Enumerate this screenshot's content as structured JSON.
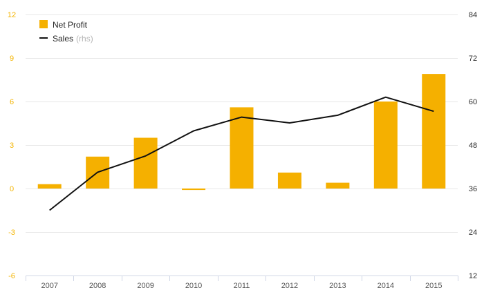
{
  "chart_data": {
    "type": "bar",
    "title": "",
    "xlabel": "",
    "ylabel": "",
    "categories": [
      "2007",
      "2008",
      "2009",
      "2010",
      "2011",
      "2012",
      "2013",
      "2014",
      "2015"
    ],
    "series": [
      {
        "name": "Net Profit",
        "type": "bar",
        "axis": "left",
        "color": "#f5b000",
        "values": [
          0.3,
          2.2,
          3.5,
          -0.1,
          5.6,
          1.1,
          0.4,
          6.0,
          7.9
        ]
      },
      {
        "name": "Sales",
        "type": "line",
        "axis": "right",
        "color": "#111111",
        "values": [
          30.0,
          40.5,
          45.0,
          51.9,
          55.7,
          54.1,
          56.2,
          61.2,
          57.3
        ]
      }
    ],
    "legend": {
      "placement": "top-left",
      "items": [
        {
          "label": "Net Profit",
          "suffix": ""
        },
        {
          "label": "Sales",
          "suffix": "(rhs)"
        }
      ]
    },
    "y_left": {
      "ylim": [
        -6,
        12
      ],
      "ticks": [
        -6,
        -3,
        0,
        3,
        6,
        9,
        12
      ],
      "tick_labels": [
        "-6",
        "-3",
        "0",
        "3",
        "6",
        "9",
        "12"
      ],
      "color": "#f4b400"
    },
    "y_right": {
      "ylim": [
        12,
        84
      ],
      "ticks": [
        12,
        24,
        36,
        48,
        60,
        72,
        84
      ],
      "tick_labels": [
        "12",
        "24",
        "36",
        "48",
        "60",
        "72",
        "84"
      ],
      "color": "#2b2b2b"
    },
    "grid": true
  }
}
